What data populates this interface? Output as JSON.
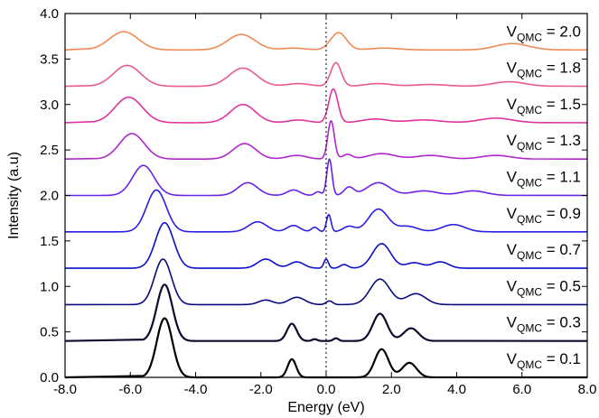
{
  "chart_data": {
    "type": "line",
    "title": "",
    "xlabel": "Energy (eV)",
    "ylabel": "Intensity (a.u)",
    "xlim": [
      -8.0,
      8.0
    ],
    "ylim": [
      0.0,
      4.0
    ],
    "x_ticks": [
      "-8.0",
      "-6.0",
      "-4.0",
      "-2.0",
      "0.0",
      "2.0",
      "4.0",
      "6.0",
      "8.0"
    ],
    "y_ticks": [
      "0.0",
      "0.5",
      "1.0",
      "1.5",
      "2.0",
      "2.5",
      "3.0",
      "3.5",
      "4.0"
    ],
    "reference_line": {
      "x": 0.0,
      "style": "dotted"
    },
    "series": [
      {
        "label": {
          "main": "V",
          "sub": "QMC",
          "value": "= 0.1"
        },
        "offset": 0.0,
        "color": "#000000",
        "xrange": [
          -5.6,
          3.3
        ],
        "peaks": [
          [
            -4.95,
            0.65,
            0.24
          ],
          [
            -1.05,
            0.2,
            0.13
          ],
          [
            1.7,
            0.31,
            0.21
          ],
          [
            2.55,
            0.16,
            0.22
          ]
        ]
      },
      {
        "label": {
          "main": "V",
          "sub": "QMC",
          "value": "= 0.3"
        },
        "offset": 0.4,
        "color": "#0c0c30",
        "xrange": [
          -5.6,
          3.3
        ],
        "peaks": [
          [
            -4.95,
            0.62,
            0.24
          ],
          [
            -1.05,
            0.19,
            0.15
          ],
          [
            0.3,
            0.03,
            0.08
          ],
          [
            -0.35,
            0.02,
            0.08
          ],
          [
            1.65,
            0.3,
            0.22
          ],
          [
            2.6,
            0.14,
            0.23
          ]
        ]
      },
      {
        "label": {
          "main": "V",
          "sub": "QMC",
          "value": "= 0.5"
        },
        "offset": 0.8,
        "color": "#0a0a80",
        "xrange": [
          -6.0,
          3.9
        ],
        "peaks": [
          [
            -5.0,
            0.5,
            0.26
          ],
          [
            -1.85,
            0.05,
            0.22
          ],
          [
            -0.9,
            0.08,
            0.25
          ],
          [
            0.1,
            0.04,
            0.1
          ],
          [
            1.65,
            0.28,
            0.3
          ],
          [
            2.75,
            0.12,
            0.3
          ]
        ]
      },
      {
        "label": {
          "main": "V",
          "sub": "QMC",
          "value": "= 0.7"
        },
        "offset": 1.2,
        "color": "#0d0dcc",
        "xrange": [
          -6.2,
          4.4
        ],
        "peaks": [
          [
            -4.95,
            0.5,
            0.28
          ],
          [
            -1.85,
            0.1,
            0.25
          ],
          [
            -0.9,
            0.07,
            0.22
          ],
          [
            0.0,
            0.1,
            0.07
          ],
          [
            0.55,
            0.04,
            0.12
          ],
          [
            1.7,
            0.27,
            0.28
          ],
          [
            2.7,
            0.06,
            0.25
          ],
          [
            3.5,
            0.07,
            0.25
          ]
        ]
      },
      {
        "label": {
          "main": "V",
          "sub": "QMC",
          "value": "= 0.9"
        },
        "offset": 1.6,
        "color": "#2a1ee6",
        "xrange": [
          -6.4,
          5.2
        ],
        "peaks": [
          [
            -5.2,
            0.46,
            0.3
          ],
          [
            -2.1,
            0.11,
            0.28
          ],
          [
            -1.0,
            0.07,
            0.2
          ],
          [
            -0.35,
            0.05,
            0.1
          ],
          [
            0.08,
            0.19,
            0.07
          ],
          [
            0.7,
            0.06,
            0.18
          ],
          [
            1.6,
            0.25,
            0.3
          ],
          [
            2.5,
            0.06,
            0.3
          ],
          [
            3.9,
            0.08,
            0.35
          ]
        ]
      },
      {
        "label": {
          "main": "V",
          "sub": "QMC",
          "value": "= 1.1"
        },
        "offset": 2.0,
        "color": "#6a22e8",
        "xrange": [
          -6.9,
          5.5
        ],
        "peaks": [
          [
            -5.6,
            0.33,
            0.33
          ],
          [
            -2.4,
            0.14,
            0.3
          ],
          [
            -1.0,
            0.06,
            0.2
          ],
          [
            -0.25,
            0.04,
            0.1
          ],
          [
            0.1,
            0.4,
            0.08
          ],
          [
            0.7,
            0.09,
            0.15
          ],
          [
            1.6,
            0.14,
            0.35
          ],
          [
            3.0,
            0.05,
            0.4
          ],
          [
            4.5,
            0.05,
            0.4
          ]
        ]
      },
      {
        "label": {
          "main": "V",
          "sub": "QMC",
          "value": "= 1.3"
        },
        "offset": 2.4,
        "color": "#b026cc",
        "xrange": [
          -7.0,
          6.3
        ],
        "peaks": [
          [
            -5.95,
            0.28,
            0.38
          ],
          [
            -2.5,
            0.17,
            0.35
          ],
          [
            -0.9,
            0.04,
            0.3
          ],
          [
            0.15,
            0.42,
            0.1
          ],
          [
            0.65,
            0.05,
            0.15
          ],
          [
            1.7,
            0.06,
            0.4
          ],
          [
            3.2,
            0.04,
            0.45
          ],
          [
            5.2,
            0.04,
            0.45
          ]
        ]
      },
      {
        "label": {
          "main": "V",
          "sub": "QMC",
          "value": "= 1.5"
        },
        "offset": 2.8,
        "color": "#e0339e",
        "xrange": [
          -7.1,
          6.6
        ],
        "peaks": [
          [
            -6.05,
            0.28,
            0.42
          ],
          [
            -2.55,
            0.2,
            0.38
          ],
          [
            -0.85,
            0.03,
            0.3
          ],
          [
            0.22,
            0.37,
            0.14
          ],
          [
            1.5,
            0.04,
            0.4
          ],
          [
            3.0,
            0.03,
            0.5
          ],
          [
            5.2,
            0.05,
            0.5
          ]
        ]
      },
      {
        "label": {
          "main": "V",
          "sub": "QMC",
          "value": "= 1.8"
        },
        "offset": 3.2,
        "color": "#ea5a88",
        "xrange": [
          -7.2,
          6.8
        ],
        "peaks": [
          [
            -6.1,
            0.23,
            0.42
          ],
          [
            -2.55,
            0.2,
            0.42
          ],
          [
            -0.85,
            0.03,
            0.35
          ],
          [
            0.3,
            0.26,
            0.16
          ],
          [
            1.6,
            0.03,
            0.4
          ],
          [
            3.2,
            0.02,
            0.5
          ],
          [
            5.6,
            0.05,
            0.5
          ]
        ]
      },
      {
        "label": {
          "main": "V",
          "sub": "QMC",
          "value": "= 2.0"
        },
        "offset": 3.6,
        "color": "#f08a55",
        "xrange": [
          -7.2,
          7.2
        ],
        "peaks": [
          [
            -6.2,
            0.2,
            0.44
          ],
          [
            -2.6,
            0.17,
            0.42
          ],
          [
            -1.0,
            0.02,
            0.35
          ],
          [
            0.38,
            0.19,
            0.24
          ],
          [
            1.8,
            0.02,
            0.45
          ],
          [
            5.7,
            0.07,
            0.5
          ]
        ]
      }
    ]
  }
}
